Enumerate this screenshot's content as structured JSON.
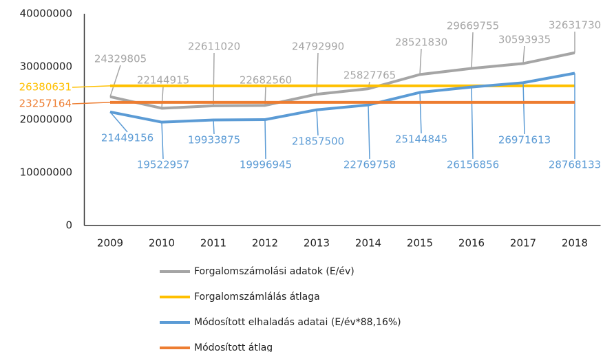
{
  "chart_data": {
    "type": "line",
    "categories": [
      "2009",
      "2010",
      "2011",
      "2012",
      "2013",
      "2014",
      "2015",
      "2016",
      "2017",
      "2018"
    ],
    "series": [
      {
        "name": "Forgalomszámolási adatok (E/év)",
        "color": "#a5a5a5",
        "values": [
          24329805,
          22144915,
          22611020,
          22682560,
          24792990,
          25827765,
          28521830,
          29669755,
          30593935,
          32631730
        ]
      },
      {
        "name": "Forgalomszámlálás átlaga",
        "color": "#ffc000",
        "values": [
          26380631,
          26380631,
          26380631,
          26380631,
          26380631,
          26380631,
          26380631,
          26380631,
          26380631,
          26380631
        ]
      },
      {
        "name": "Módosított elhaladás adatai (E/év*88,16%)",
        "color": "#5b9bd5",
        "values": [
          21449156,
          19522957,
          19933875,
          19996945,
          21857500,
          22769758,
          25144845,
          26156856,
          26971613,
          28768133
        ]
      },
      {
        "name": "Módosított átlag",
        "color": "#ed7d31",
        "values": [
          23257164,
          23257164,
          23257164,
          23257164,
          23257164,
          23257164,
          23257164,
          23257164,
          23257164,
          23257164
        ]
      }
    ],
    "ylim": [
      0,
      40000000
    ],
    "yticks": [
      0,
      10000000,
      20000000,
      30000000,
      40000000
    ],
    "grid": false,
    "legend": "bottom"
  }
}
